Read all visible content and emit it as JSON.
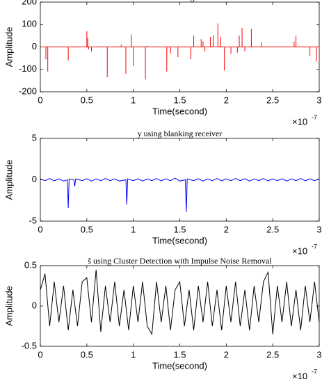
{
  "chart_data": [
    {
      "type": "stem",
      "title": "Received Signal r",
      "xlabel": "Time(second)",
      "ylabel": "Amplitude",
      "x_multiplier": "×10",
      "x_multiplier_exponent": "-7",
      "color": "#ff0000",
      "x": [
        0.06,
        0.08,
        0.3,
        0.5,
        0.51,
        0.52,
        0.55,
        0.72,
        0.87,
        0.92,
        0.98,
        1.0,
        1.13,
        1.15,
        1.36,
        1.4,
        1.48,
        1.62,
        1.65,
        1.73,
        1.75,
        1.77,
        1.83,
        1.86,
        1.91,
        1.94,
        1.98,
        2.05,
        2.12,
        2.14,
        2.17,
        2.2,
        2.27,
        2.38,
        2.73,
        2.75,
        2.9,
        2.97
      ],
      "values": [
        -55,
        -110,
        -60,
        70,
        40,
        -10,
        -20,
        -135,
        10,
        -120,
        55,
        -85,
        -145,
        5,
        -110,
        -30,
        -45,
        -55,
        50,
        35,
        25,
        -20,
        45,
        50,
        105,
        45,
        -105,
        -30,
        -25,
        50,
        85,
        -20,
        80,
        20,
        25,
        50,
        -40,
        -65
      ],
      "xlim": [
        0,
        3
      ],
      "xticks": [
        0,
        0.5,
        1,
        1.5,
        2,
        2.5,
        3
      ],
      "ylim": [
        -200,
        200
      ],
      "yticks": [
        -200,
        -100,
        0,
        100,
        200
      ]
    },
    {
      "type": "line",
      "title": "y using blanking receiver",
      "xlabel": "Time(second)",
      "ylabel": "Amplitude",
      "x_multiplier": "×10",
      "x_multiplier_exponent": "-7",
      "color": "#0000ff",
      "x": [
        0,
        0.05,
        0.1,
        0.15,
        0.2,
        0.25,
        0.29,
        0.3,
        0.31,
        0.36,
        0.37,
        0.38,
        0.45,
        0.5,
        0.55,
        0.6,
        0.65,
        0.7,
        0.75,
        0.8,
        0.85,
        0.92,
        0.93,
        0.94,
        1.0,
        1.05,
        1.1,
        1.15,
        1.2,
        1.25,
        1.3,
        1.35,
        1.4,
        1.45,
        1.5,
        1.56,
        1.57,
        1.58,
        1.65,
        1.7,
        1.75,
        1.8,
        1.85,
        1.9,
        1.95,
        2.0,
        2.05,
        2.1,
        2.15,
        2.2,
        2.25,
        2.3,
        2.35,
        2.4,
        2.45,
        2.5,
        2.55,
        2.6,
        2.65,
        2.7,
        2.75,
        2.8,
        2.85,
        2.9,
        2.95,
        3.0
      ],
      "values": [
        0.1,
        -0.1,
        0.15,
        -0.12,
        0.1,
        -0.15,
        0,
        -3.4,
        0.1,
        0,
        -0.8,
        0.1,
        -0.1,
        0.12,
        -0.15,
        0.1,
        -0.1,
        0.15,
        -0.1,
        0.1,
        -0.15,
        0,
        -3,
        0.1,
        -0.1,
        0.12,
        -0.15,
        0.1,
        -0.1,
        0.15,
        -0.12,
        0.1,
        -0.1,
        0.2,
        -0.15,
        0,
        -3.9,
        0.1,
        -0.1,
        0.12,
        -0.15,
        0.1,
        -0.1,
        0.15,
        -0.12,
        0.1,
        -0.1,
        0.15,
        -0.1,
        0.12,
        -0.15,
        0.1,
        -0.1,
        0.15,
        -0.12,
        0.1,
        -0.1,
        0.12,
        -0.15,
        0.1,
        -0.1,
        0.15,
        -0.12,
        0.1,
        -0.1,
        0.1
      ],
      "xlim": [
        0,
        3
      ],
      "xticks": [
        0,
        0.5,
        1,
        1.5,
        2,
        2.5,
        3
      ],
      "ylim": [
        -5,
        5
      ],
      "yticks": [
        -5,
        0,
        5
      ]
    },
    {
      "type": "line",
      "title": "ŝ using Cluster Detection with Impulse Noise Removal",
      "xlabel": "Time(second)",
      "ylabel": "Amplitude",
      "x_multiplier": "×10",
      "x_multiplier_exponent": "-7",
      "color": "#000000",
      "x": [
        0,
        0.05,
        0.1,
        0.15,
        0.2,
        0.25,
        0.3,
        0.35,
        0.4,
        0.45,
        0.5,
        0.55,
        0.6,
        0.65,
        0.7,
        0.75,
        0.8,
        0.85,
        0.9,
        0.95,
        1.0,
        1.05,
        1.1,
        1.15,
        1.2,
        1.25,
        1.3,
        1.35,
        1.4,
        1.45,
        1.5,
        1.55,
        1.6,
        1.65,
        1.7,
        1.75,
        1.8,
        1.85,
        1.9,
        1.95,
        2.0,
        2.05,
        2.1,
        2.15,
        2.2,
        2.25,
        2.3,
        2.35,
        2.4,
        2.45,
        2.5,
        2.55,
        2.6,
        2.65,
        2.7,
        2.75,
        2.8,
        2.85,
        2.9,
        2.95,
        3.0
      ],
      "values": [
        0.2,
        0.4,
        -0.25,
        0.3,
        -0.2,
        0.25,
        -0.3,
        0.2,
        -0.25,
        0.3,
        0.35,
        -0.2,
        0.45,
        -0.32,
        0.25,
        -0.2,
        0.3,
        -0.25,
        0.2,
        -0.3,
        0.25,
        -0.2,
        0.3,
        -0.25,
        -0.35,
        0.3,
        -0.2,
        0.25,
        -0.3,
        0.2,
        0.3,
        -0.25,
        0.2,
        -0.3,
        0.25,
        -0.2,
        0.3,
        -0.25,
        0.2,
        -0.3,
        0.25,
        -0.2,
        0.3,
        -0.25,
        0.2,
        -0.3,
        0.25,
        -0.2,
        0.3,
        0.42,
        -0.35,
        0.25,
        -0.2,
        0.3,
        -0.25,
        0.2,
        -0.3,
        0.25,
        -0.2,
        0.3,
        -0.2
      ],
      "xlim": [
        0,
        3
      ],
      "xticks": [
        0,
        0.5,
        1,
        1.5,
        2,
        2.5,
        3
      ],
      "ylim": [
        -0.5,
        0.5
      ],
      "yticks": [
        -0.5,
        0,
        0.5
      ]
    }
  ]
}
